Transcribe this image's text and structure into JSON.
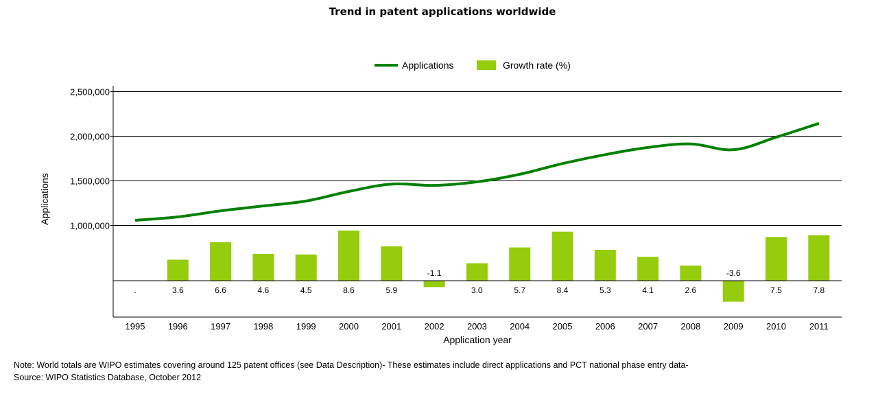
{
  "chart_data": {
    "type": "bar+line",
    "title": "Trend in patent applications worldwide",
    "xlabel": "Application year",
    "ylabel": "Applications",
    "categories": [
      "1995",
      "1996",
      "1997",
      "1998",
      "1999",
      "2000",
      "2001",
      "2002",
      "2003",
      "2004",
      "2005",
      "2006",
      "2007",
      "2008",
      "2009",
      "2010",
      "2011"
    ],
    "legend": {
      "placement": "top-center",
      "entries": [
        {
          "name": "Applications",
          "marker": "line",
          "color": "#008000"
        },
        {
          "name": "Growth rate (%)",
          "marker": "box",
          "color": "#95cc0c"
        }
      ]
    },
    "series": [
      {
        "name": "Applications",
        "type": "line",
        "color": "#008000",
        "values": [
          1054000,
          1092000,
          1160000,
          1215000,
          1270000,
          1377000,
          1460000,
          1445000,
          1485000,
          1570000,
          1690000,
          1790000,
          1870000,
          1910000,
          1845000,
          1985000,
          2140000
        ]
      },
      {
        "name": "Growth rate (%)",
        "type": "bar",
        "color": "#95cc0c",
        "values": [
          null,
          3.6,
          6.6,
          4.6,
          4.5,
          8.6,
          5.9,
          -1.1,
          3.0,
          5.7,
          8.4,
          5.3,
          4.1,
          2.6,
          -3.6,
          7.5,
          7.8
        ],
        "data_labels": [
          ".",
          "3.6",
          "6.6",
          "4.6",
          "4.5",
          "8.6",
          "5.9",
          "-1.1",
          "3.0",
          "5.7",
          "8.4",
          "5.3",
          "4.1",
          "2.6",
          "-3.6",
          "7.5",
          "7.8"
        ]
      }
    ],
    "y_ticks": [
      {
        "value": 1000000,
        "label": "1,000,000"
      },
      {
        "value": 1500000,
        "label": "1,500,000"
      },
      {
        "value": 2000000,
        "label": "2,000,000"
      },
      {
        "value": 2500000,
        "label": "2,500,000"
      }
    ],
    "ylim_applications": [
      1000000,
      2500000
    ],
    "ylim_growth": [
      -6.2,
      9.5
    ],
    "grid": true
  },
  "notes": {
    "note": "Note: World totals are WIPO estimates covering around 125 patent offices (see Data Description)- These estimates include direct applications and PCT national phase entry data-",
    "source": "Source: WIPO Statistics Database, October 2012"
  }
}
